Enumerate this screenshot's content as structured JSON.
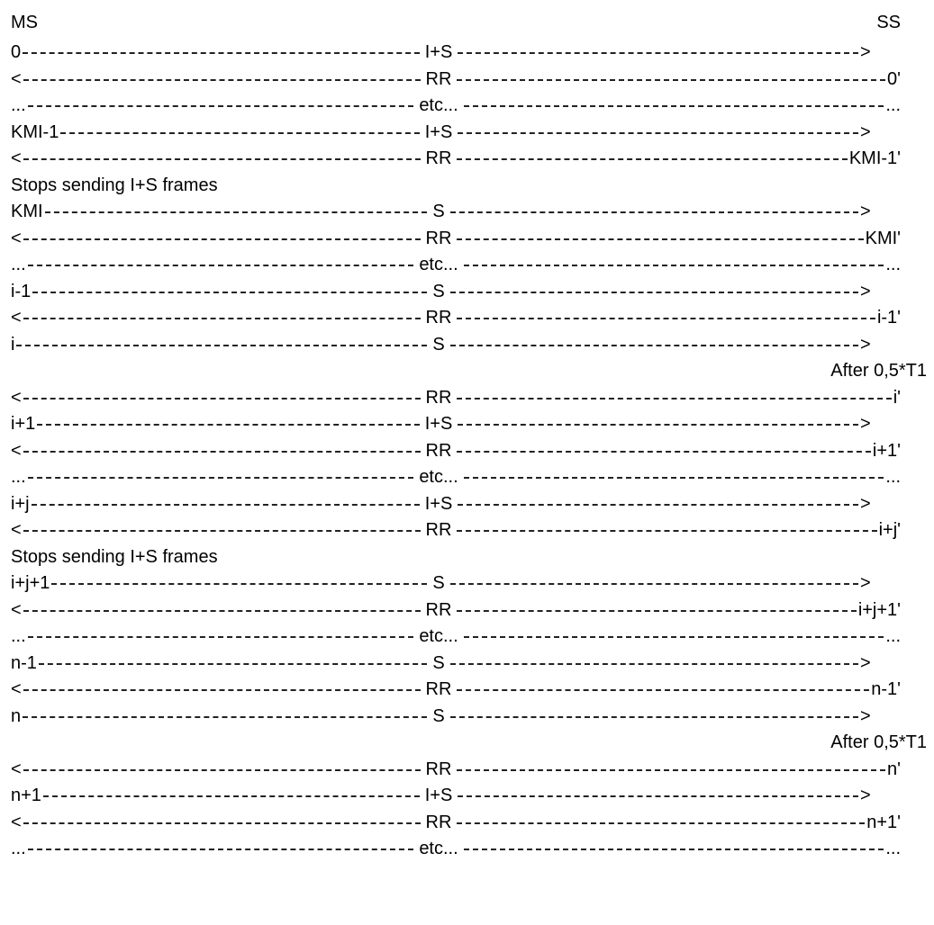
{
  "header": {
    "left": "MS",
    "right": "SS"
  },
  "rows": [
    {
      "kind": "msg",
      "left": "0",
      "mid": "I+S",
      "right": ">"
    },
    {
      "kind": "msg",
      "left": "<",
      "mid": "RR",
      "right": "0'"
    },
    {
      "kind": "msg",
      "left": "...",
      "mid": "etc...",
      "right": "..."
    },
    {
      "kind": "msg",
      "left": "KMI-1",
      "mid": "I+S",
      "right": ">"
    },
    {
      "kind": "msg",
      "left": "<",
      "mid": "RR",
      "right": "KMI-1'"
    },
    {
      "kind": "note",
      "text": "Stops sending I+S frames"
    },
    {
      "kind": "msg",
      "left": "KMI",
      "mid": "S",
      "right": ">"
    },
    {
      "kind": "msg",
      "left": "<",
      "mid": "RR",
      "right": "KMI'"
    },
    {
      "kind": "msg",
      "left": "...",
      "mid": "etc...",
      "right": "..."
    },
    {
      "kind": "msg",
      "left": "i-1",
      "mid": "S",
      "right": ">"
    },
    {
      "kind": "msg",
      "left": "<",
      "mid": "RR",
      "right": "i-1'"
    },
    {
      "kind": "msg",
      "left": "i",
      "mid": "S",
      "right": ">"
    },
    {
      "kind": "after",
      "text": "After 0,5*T1"
    },
    {
      "kind": "msg",
      "left": "<",
      "mid": "RR",
      "right": "i'"
    },
    {
      "kind": "msg",
      "left": "i+1",
      "mid": "I+S",
      "right": ">"
    },
    {
      "kind": "msg",
      "left": "<",
      "mid": "RR",
      "right": "i+1'"
    },
    {
      "kind": "msg",
      "left": "...",
      "mid": "etc...",
      "right": "..."
    },
    {
      "kind": "msg",
      "left": "i+j",
      "mid": "I+S",
      "right": ">"
    },
    {
      "kind": "msg",
      "left": "<",
      "mid": "RR",
      "right": "i+j'"
    },
    {
      "kind": "note",
      "text": "Stops sending I+S frames"
    },
    {
      "kind": "msg",
      "left": "i+j+1",
      "mid": "S",
      "right": ">"
    },
    {
      "kind": "msg",
      "left": "<",
      "mid": "RR",
      "right": "i+j+1'"
    },
    {
      "kind": "msg",
      "left": "...",
      "mid": "etc...",
      "right": "..."
    },
    {
      "kind": "msg",
      "left": "n-1",
      "mid": "S",
      "right": ">"
    },
    {
      "kind": "msg",
      "left": "<",
      "mid": "RR",
      "right": "n-1'"
    },
    {
      "kind": "msg",
      "left": "n",
      "mid": "S",
      "right": ">"
    },
    {
      "kind": "after",
      "text": "After 0,5*T1"
    },
    {
      "kind": "msg",
      "left": "<",
      "mid": "RR",
      "right": "n'"
    },
    {
      "kind": "msg",
      "left": "n+1",
      "mid": "I+S",
      "right": ">"
    },
    {
      "kind": "msg",
      "left": "<",
      "mid": "RR",
      "right": "n+1'"
    },
    {
      "kind": "msg",
      "left": "...",
      "mid": "etc...",
      "right": "..."
    }
  ]
}
